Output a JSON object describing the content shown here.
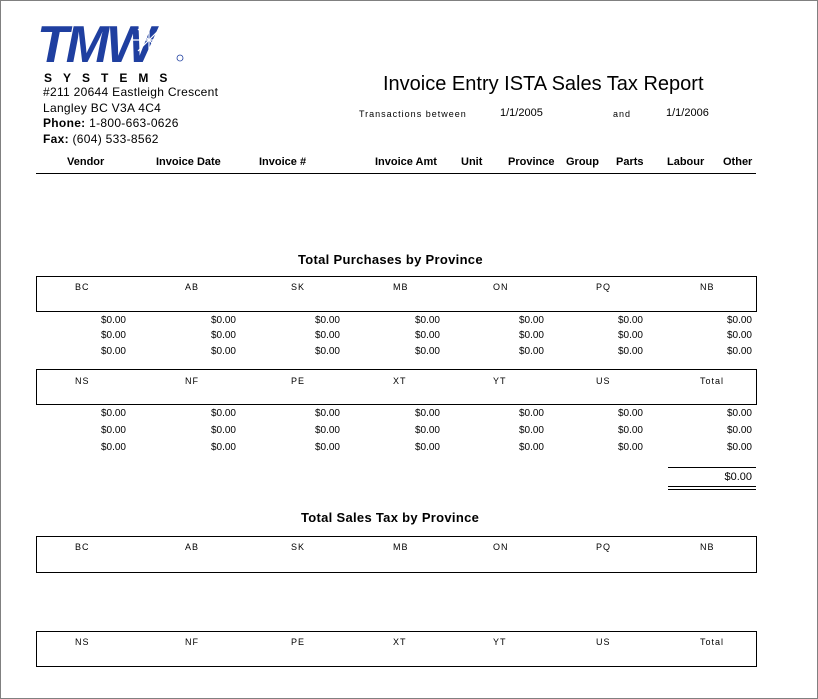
{
  "company": {
    "logo_text": "TMW",
    "logo_sub": "SYSTEMS",
    "address_line1": "#211 20644 Eastleigh Crescent",
    "address_line2": "Langley  BC   V3A  4C4",
    "phone_label": "Phone:",
    "phone": "1-800-663-0626",
    "fax_label": "Fax:",
    "fax": "(604) 533-8562"
  },
  "report": {
    "title": "Invoice Entry ISTA Sales Tax Report",
    "transactions_label": "Transactions between",
    "start_date": "1/1/2005",
    "and_label": "and",
    "end_date": "1/1/2006"
  },
  "columns": [
    "Vendor",
    "Invoice Date",
    "Invoice #",
    "Invoice Amt",
    "Unit",
    "Province",
    "Group",
    "Parts",
    "Labour",
    "Other"
  ],
  "purchases": {
    "title": "Total Purchases by Province",
    "row1_headers": [
      "BC",
      "AB",
      "SK",
      "MB",
      "ON",
      "PQ",
      "NB"
    ],
    "row1_values": [
      [
        "$0.00",
        "$0.00",
        "$0.00",
        "$0.00",
        "$0.00",
        "$0.00",
        "$0.00"
      ],
      [
        "$0.00",
        "$0.00",
        "$0.00",
        "$0.00",
        "$0.00",
        "$0.00",
        "$0.00"
      ],
      [
        "$0.00",
        "$0.00",
        "$0.00",
        "$0.00",
        "$0.00",
        "$0.00",
        "$0.00"
      ]
    ],
    "row2_headers": [
      "NS",
      "NF",
      "PE",
      "XT",
      "YT",
      "US",
      "Total"
    ],
    "row2_values": [
      [
        "$0.00",
        "$0.00",
        "$0.00",
        "$0.00",
        "$0.00",
        "$0.00",
        "$0.00"
      ],
      [
        "$0.00",
        "$0.00",
        "$0.00",
        "$0.00",
        "$0.00",
        "$0.00",
        "$0.00"
      ],
      [
        "$0.00",
        "$0.00",
        "$0.00",
        "$0.00",
        "$0.00",
        "$0.00",
        "$0.00"
      ]
    ],
    "grand_total": "$0.00"
  },
  "sales_tax": {
    "title": "Total Sales Tax by Province",
    "row1_headers": [
      "BC",
      "AB",
      "SK",
      "MB",
      "ON",
      "PQ",
      "NB"
    ],
    "row2_headers": [
      "NS",
      "NF",
      "PE",
      "XT",
      "YT",
      "US",
      "Total"
    ]
  },
  "colors": {
    "logo_blue": "#1f3fa0"
  }
}
